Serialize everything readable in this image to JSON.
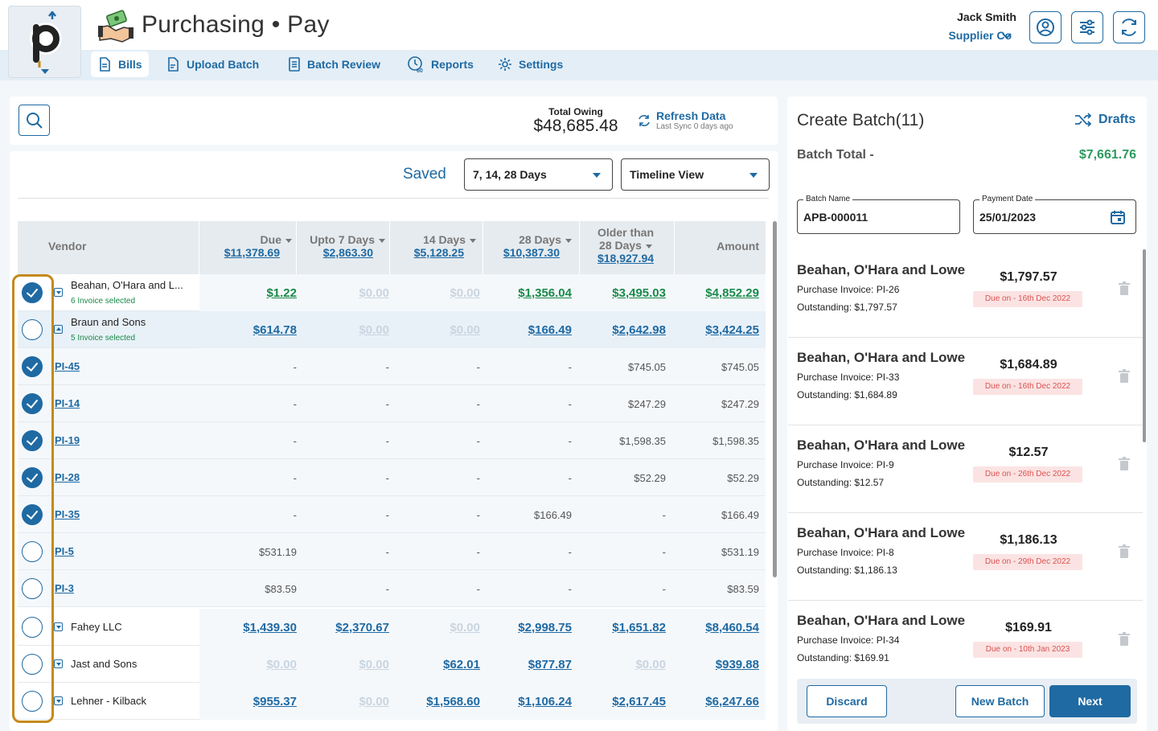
{
  "app": {
    "title": "Purchasing • Pay",
    "user_name": "Jack Smith",
    "company": "Supplier Co"
  },
  "nav": [
    {
      "label": "Bills",
      "icon": "document-icon",
      "active": true
    },
    {
      "label": "Upload Batch",
      "icon": "upload-file-icon",
      "active": false
    },
    {
      "label": "Batch Review",
      "icon": "review-list-icon",
      "active": false
    },
    {
      "label": "Reports",
      "icon": "reports-clock-icon",
      "active": false
    },
    {
      "label": "Settings",
      "icon": "gear-icon",
      "active": false
    }
  ],
  "summary": {
    "total_owing_label": "Total Owing",
    "total_owing_value": "$48,685.48",
    "refresh_label": "Refresh Data",
    "last_sync": "Last Sync 0 days ago"
  },
  "filters": {
    "saved_label": "Saved",
    "period_value": "7, 14, 28 Days",
    "view_value": "Timeline View"
  },
  "table": {
    "headers": {
      "vendor": "Vendor",
      "due": "Due",
      "due_total": "$11,378.69",
      "d7": "Upto 7 Days",
      "d7_total": "$2,863.30",
      "d14": "14 Days",
      "d14_total": "$5,128.25",
      "d28": "28 Days",
      "d28_total": "$10,387.30",
      "older_l1": "Older than",
      "older_l2": "28 Days",
      "older_total": "$18,927.94",
      "amount": "Amount"
    },
    "rows": [
      {
        "type": "vendor",
        "name": "Beahan, O'Hara and L...",
        "sub": "6 Invoice selected",
        "checked": true,
        "expanded": false,
        "due": "$1.22",
        "d7": "$0.00",
        "d14": "$0.00",
        "d28": "$1,356.04",
        "older": "$3,495.03",
        "amount": "$4,852.29"
      },
      {
        "type": "vendor",
        "name": "Braun and Sons",
        "sub": "5 Invoice selected",
        "checked": false,
        "expanded": true,
        "due": "$614.78",
        "d7": "$0.00",
        "d14": "$0.00",
        "d28": "$166.49",
        "older": "$2,642.98",
        "amount": "$3,424.25"
      },
      {
        "type": "invoice",
        "name": "PI-45",
        "checked": true,
        "due": "-",
        "d7": "-",
        "d14": "-",
        "d28": "-",
        "older": "$745.05",
        "amount": "$745.05"
      },
      {
        "type": "invoice",
        "name": "PI-14",
        "checked": true,
        "due": "-",
        "d7": "-",
        "d14": "-",
        "d28": "-",
        "older": "$247.29",
        "amount": "$247.29"
      },
      {
        "type": "invoice",
        "name": "PI-19",
        "checked": true,
        "due": "-",
        "d7": "-",
        "d14": "-",
        "d28": "-",
        "older": "$1,598.35",
        "amount": "$1,598.35"
      },
      {
        "type": "invoice",
        "name": "PI-28",
        "checked": true,
        "due": "-",
        "d7": "-",
        "d14": "-",
        "d28": "-",
        "older": "$52.29",
        "amount": "$52.29"
      },
      {
        "type": "invoice",
        "name": "PI-35",
        "checked": true,
        "due": "-",
        "d7": "-",
        "d14": "-",
        "d28": "$166.49",
        "older": "-",
        "amount": "$166.49"
      },
      {
        "type": "invoice",
        "name": "PI-5",
        "checked": false,
        "due": "$531.19",
        "d7": "-",
        "d14": "-",
        "d28": "-",
        "older": "-",
        "amount": "$531.19"
      },
      {
        "type": "invoice",
        "name": "PI-3",
        "checked": false,
        "due": "$83.59",
        "d7": "-",
        "d14": "-",
        "d28": "-",
        "older": "-",
        "amount": "$83.59"
      },
      {
        "type": "vendor",
        "name": "Fahey LLC",
        "sub": "",
        "checked": false,
        "expanded": false,
        "due": "$1,439.30",
        "d7": "$2,370.67",
        "d14": "$0.00",
        "d28": "$2,998.75",
        "older": "$1,651.82",
        "amount": "$8,460.54"
      },
      {
        "type": "vendor",
        "name": "Jast and Sons",
        "sub": "",
        "checked": false,
        "expanded": false,
        "due": "$0.00",
        "d7": "$0.00",
        "d14": "$62.01",
        "d28": "$877.87",
        "older": "$0.00",
        "amount": "$939.88"
      },
      {
        "type": "vendor",
        "name": "Lehner - Kilback",
        "sub": "",
        "checked": false,
        "expanded": false,
        "due": "$955.37",
        "d7": "$0.00",
        "d14": "$1,568.60",
        "d28": "$1,106.24",
        "older": "$2,617.45",
        "amount": "$6,247.66"
      }
    ]
  },
  "batch": {
    "title": "Create Batch(11)",
    "drafts_label": "Drafts",
    "total_label": "Batch Total -",
    "total_value": "$7,661.76",
    "name_label": "Batch Name",
    "name_value": "APB-000011",
    "date_label": "Payment Date",
    "date_value": "25/01/2023",
    "items": [
      {
        "vendor": "Beahan, O'Hara and Lowe",
        "invoice": "Purchase Invoice: PI-26",
        "outstanding": "Outstanding: $1,797.57",
        "amount": "$1,797.57",
        "due": "Due on - 16th Dec 2022"
      },
      {
        "vendor": "Beahan, O'Hara and Lowe",
        "invoice": "Purchase Invoice: PI-33",
        "outstanding": "Outstanding: $1,684.89",
        "amount": "$1,684.89",
        "due": "Due on - 16th Dec 2022"
      },
      {
        "vendor": "Beahan, O'Hara and Lowe",
        "invoice": "Purchase Invoice: PI-9",
        "outstanding": "Outstanding: $12.57",
        "amount": "$12.57",
        "due": "Due on - 26th Dec 2022"
      },
      {
        "vendor": "Beahan, O'Hara and Lowe",
        "invoice": "Purchase Invoice: PI-8",
        "outstanding": "Outstanding: $1,186.13",
        "amount": "$1,186.13",
        "due": "Due on - 29th Dec 2022"
      },
      {
        "vendor": "Beahan, O'Hara and Lowe",
        "invoice": "Purchase Invoice: PI-34",
        "outstanding": "Outstanding: $169.91",
        "amount": "$169.91",
        "due": "Due on - 10th Jan 2023"
      }
    ],
    "discard_label": "Discard",
    "new_batch_label": "New Batch",
    "next_label": "Next"
  },
  "colors": {
    "accent": "#1f6aa3",
    "positive": "#1a8a4a",
    "due_badge_bg": "#fbe3e3",
    "due_badge_text": "#d9534f",
    "highlight": "#c58a1a"
  }
}
